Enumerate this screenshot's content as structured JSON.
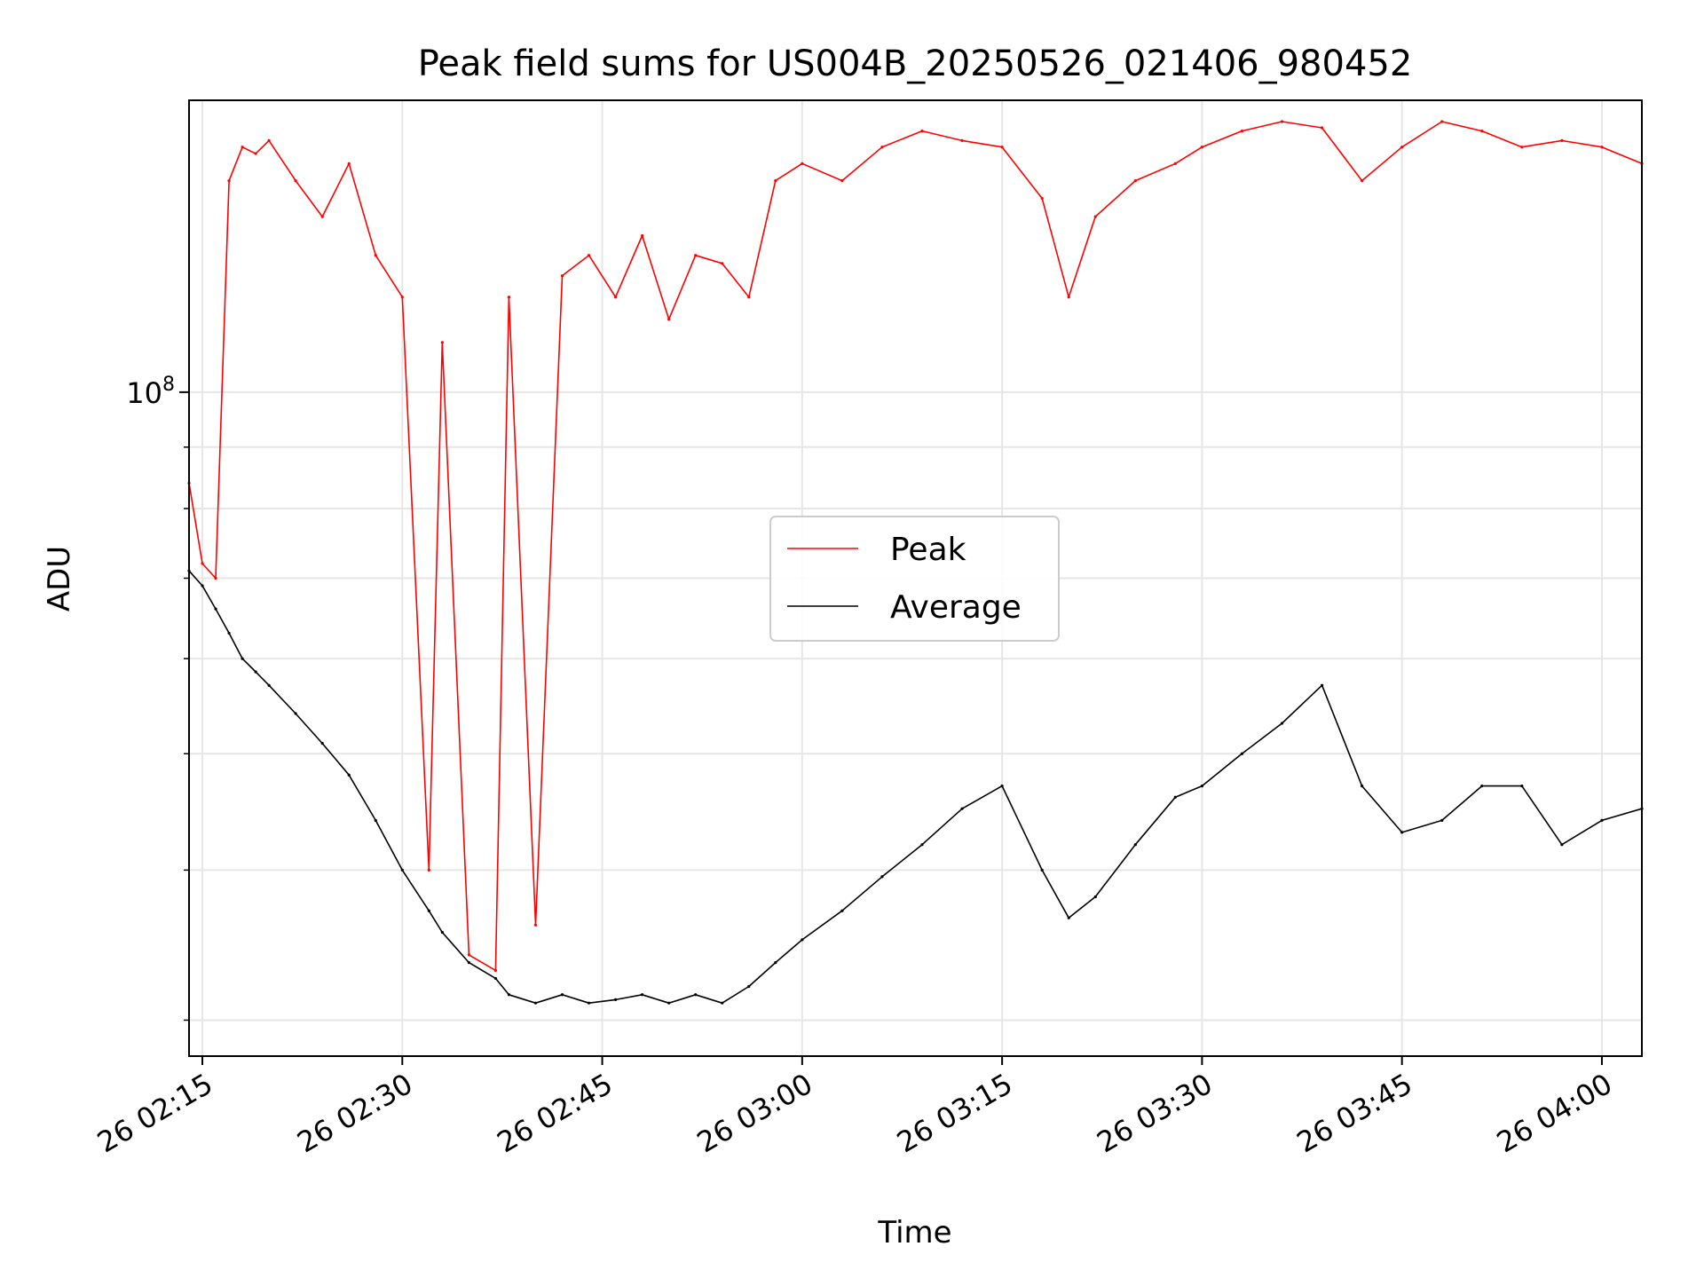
{
  "chart_data": {
    "type": "line",
    "title": "Peak field sums for US004B_20250526_021406_980452",
    "xlabel": "Time",
    "ylabel": "ADU",
    "y_scale": "log",
    "x_tick_labels": [
      "26 02:15",
      "26 02:30",
      "26 02:45",
      "26 03:00",
      "26 03:15",
      "26 03:30",
      "26 03:45",
      "26 04:00"
    ],
    "y_tick_labels": [
      "10^8"
    ],
    "xlim": [
      "02:14",
      "04:03"
    ],
    "ylim": [
      28000000,
      175000000
    ],
    "grid": true,
    "legend": {
      "position": "center",
      "entries": [
        "Peak",
        "Average"
      ]
    },
    "colors": {
      "Peak": "#ff0000",
      "Average": "#000000"
    },
    "series": [
      {
        "name": "Peak",
        "x": [
          "02:14",
          "02:15",
          "02:16",
          "02:17",
          "02:18",
          "02:19",
          "02:20",
          "02:22",
          "02:24",
          "02:26",
          "02:28",
          "02:30",
          "02:32",
          "02:33",
          "02:35",
          "02:37",
          "02:38",
          "02:40",
          "02:42",
          "02:44",
          "02:46",
          "02:48",
          "02:50",
          "02:52",
          "02:54",
          "02:56",
          "02:58",
          "03:00",
          "03:03",
          "03:06",
          "03:09",
          "03:12",
          "03:15",
          "03:18",
          "03:20",
          "03:22",
          "03:25",
          "03:28",
          "03:30",
          "03:33",
          "03:36",
          "03:39",
          "03:42",
          "03:45",
          "03:48",
          "03:51",
          "03:54",
          "03:57",
          "04:00",
          "04:03"
        ],
        "y": [
          84000000,
          72000000,
          70000000,
          150000000,
          160000000,
          158000000,
          162000000,
          150000000,
          140000000,
          155000000,
          130000000,
          120000000,
          40000000,
          110000000,
          34000000,
          33000000,
          120000000,
          36000000,
          125000000,
          130000000,
          120000000,
          135000000,
          115000000,
          130000000,
          128000000,
          120000000,
          150000000,
          155000000,
          150000000,
          160000000,
          165000000,
          162000000,
          160000000,
          145000000,
          120000000,
          140000000,
          150000000,
          155000000,
          160000000,
          165000000,
          168000000,
          166000000,
          150000000,
          160000000,
          168000000,
          165000000,
          160000000,
          162000000,
          160000000,
          155000000
        ]
      },
      {
        "name": "Average",
        "x": [
          "02:14",
          "02:15",
          "02:16",
          "02:17",
          "02:18",
          "02:19",
          "02:20",
          "02:22",
          "02:24",
          "02:26",
          "02:28",
          "02:30",
          "02:32",
          "02:33",
          "02:35",
          "02:37",
          "02:38",
          "02:40",
          "02:42",
          "02:44",
          "02:46",
          "02:48",
          "02:50",
          "02:52",
          "02:54",
          "02:56",
          "02:58",
          "03:00",
          "03:03",
          "03:06",
          "03:09",
          "03:12",
          "03:15",
          "03:18",
          "03:20",
          "03:22",
          "03:25",
          "03:28",
          "03:30",
          "03:33",
          "03:36",
          "03:39",
          "03:42",
          "03:45",
          "03:48",
          "03:51",
          "03:54",
          "03:57",
          "04:00",
          "04:03"
        ],
        "y": [
          71000000,
          69000000,
          66000000,
          63000000,
          60000000,
          58500000,
          57000000,
          54000000,
          51000000,
          48000000,
          44000000,
          40000000,
          37000000,
          35500000,
          33500000,
          32500000,
          31500000,
          31000000,
          31500000,
          31000000,
          31200000,
          31500000,
          31000000,
          31500000,
          31000000,
          32000000,
          33500000,
          35000000,
          37000000,
          39500000,
          42000000,
          45000000,
          47000000,
          40000000,
          36500000,
          38000000,
          42000000,
          46000000,
          47000000,
          50000000,
          53000000,
          57000000,
          47000000,
          43000000,
          44000000,
          47000000,
          47000000,
          42000000,
          44000000,
          45000000
        ]
      }
    ]
  }
}
